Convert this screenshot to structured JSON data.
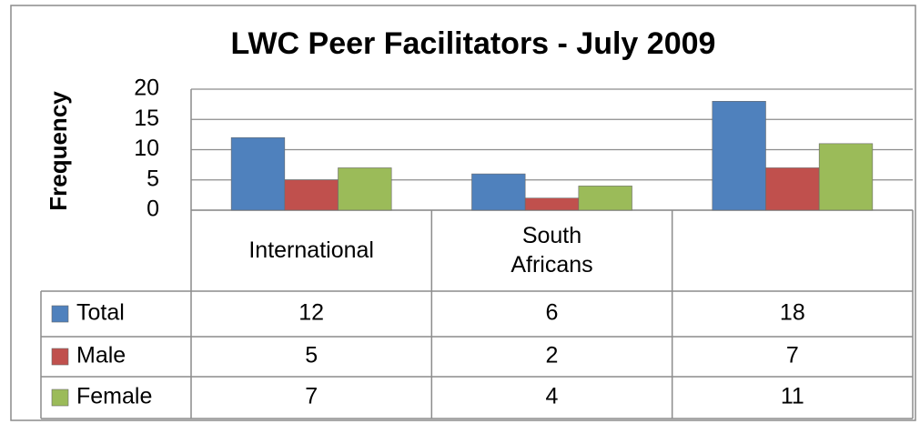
{
  "chart_data": {
    "type": "bar",
    "title": "LWC Peer Facilitators - July 2009",
    "ylabel": "Frequency",
    "categories": [
      "International",
      "South Africans",
      null
    ],
    "series": [
      {
        "name": "Total",
        "color": "#4f81bd",
        "values": [
          12,
          6,
          18
        ]
      },
      {
        "name": "Male",
        "color": "#c0504d",
        "values": [
          5,
          2,
          7
        ]
      },
      {
        "name": "Female",
        "color": "#9bbb59",
        "values": [
          7,
          4,
          11
        ]
      }
    ],
    "ylim": [
      0,
      20
    ],
    "yticks": [
      0,
      5,
      10,
      15,
      20
    ],
    "grid": true
  }
}
